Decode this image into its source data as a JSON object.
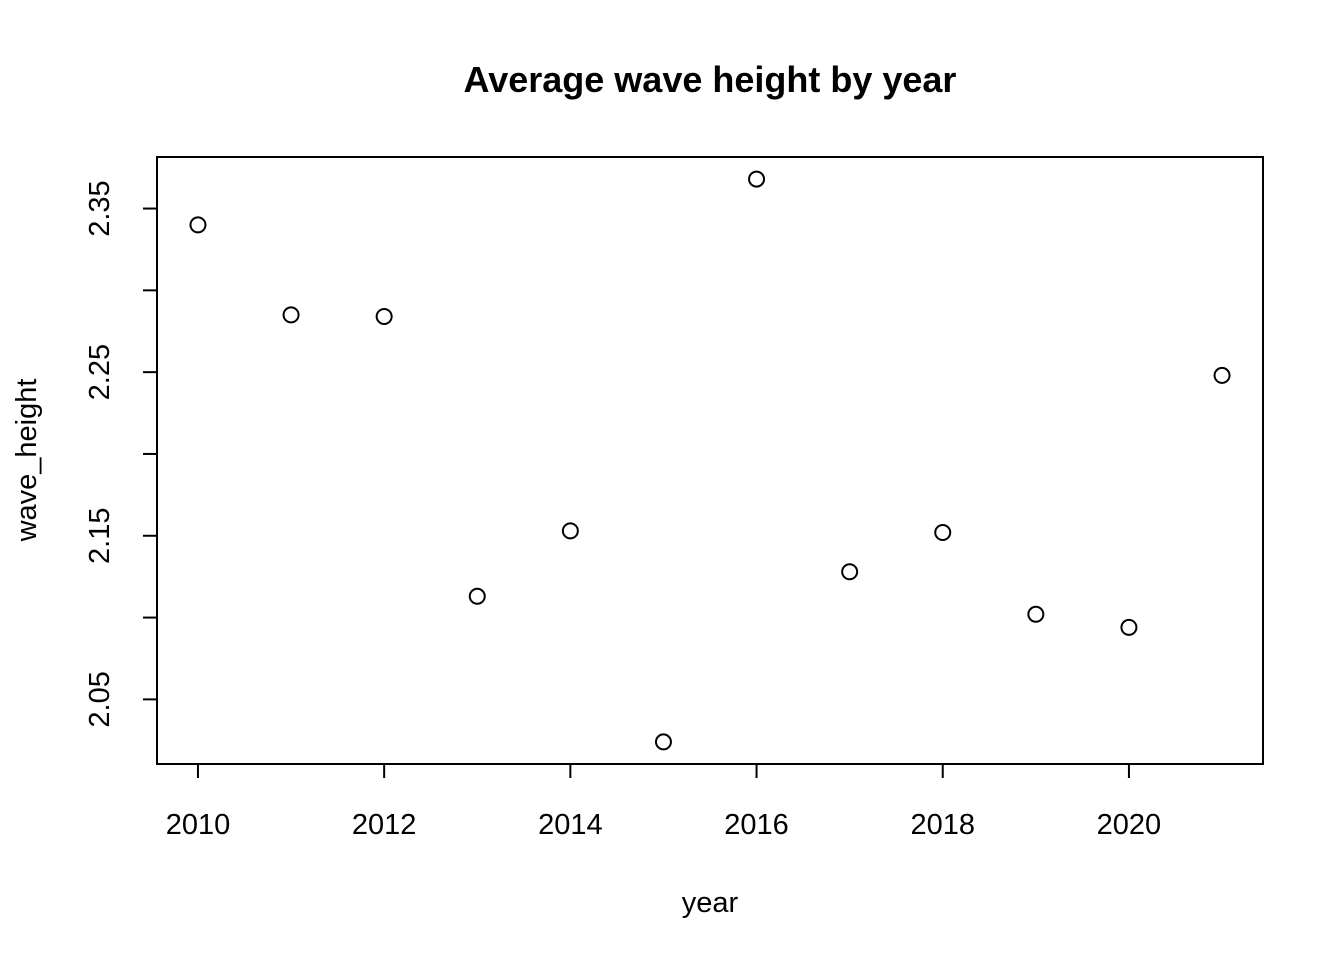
{
  "chart_data": {
    "type": "scatter",
    "title": "Average wave height by year",
    "xlabel": "year",
    "ylabel": "wave_height",
    "x": [
      2010,
      2011,
      2012,
      2013,
      2014,
      2015,
      2016,
      2017,
      2018,
      2019,
      2020,
      2021
    ],
    "y": [
      2.34,
      2.285,
      2.284,
      2.113,
      2.153,
      2.024,
      2.368,
      2.128,
      2.152,
      2.102,
      2.094,
      2.248
    ],
    "xlim": [
      2009.56,
      2021.44
    ],
    "ylim": [
      2.0105,
      2.3815
    ],
    "xticks": [
      2010,
      2012,
      2014,
      2016,
      2018,
      2020
    ],
    "xtick_labels": [
      "2010",
      "2012",
      "2014",
      "2016",
      "2018",
      "2020"
    ],
    "yticks": [
      2.05,
      2.1,
      2.15,
      2.2,
      2.25,
      2.3,
      2.35
    ],
    "ytick_labels": [
      "2.05",
      "",
      "2.15",
      "",
      "2.25",
      "",
      "2.35"
    ],
    "grid": false,
    "marker": "open-circle",
    "colors": {
      "foreground": "#000000",
      "background": "#ffffff"
    }
  }
}
